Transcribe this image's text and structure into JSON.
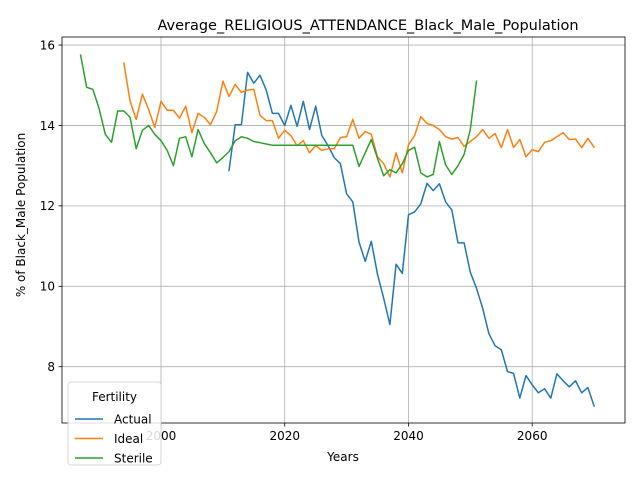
{
  "chart_data": {
    "type": "line",
    "title": "Average_RELIGIOUS_ATTENDANCE_Black_Male_Population",
    "xlabel": "Years",
    "ylabel": "% of Black_Male Population",
    "xlim": [
      1984,
      2075
    ],
    "ylim": [
      6.6,
      16.2
    ],
    "xticks": [
      2000,
      2020,
      2040,
      2060
    ],
    "yticks": [
      8,
      10,
      12,
      14,
      16
    ],
    "grid": true,
    "legend": {
      "title": "Fertility",
      "placement": "lower-left"
    },
    "series": [
      {
        "name": "Actual",
        "color": "#1f77b4",
        "points": [
          [
            2011,
            12.88
          ],
          [
            2012,
            14.02
          ],
          [
            2013,
            14.02
          ],
          [
            2014,
            15.32
          ],
          [
            2015,
            15.05
          ],
          [
            2016,
            15.25
          ],
          [
            2017,
            14.88
          ],
          [
            2018,
            14.3
          ],
          [
            2019,
            14.3
          ],
          [
            2020,
            14.0
          ],
          [
            2021,
            14.5
          ],
          [
            2022,
            13.98
          ],
          [
            2023,
            14.6
          ],
          [
            2024,
            13.9
          ],
          [
            2025,
            14.48
          ],
          [
            2026,
            13.75
          ],
          [
            2027,
            13.5
          ],
          [
            2028,
            13.2
          ],
          [
            2029,
            13.05
          ],
          [
            2030,
            12.3
          ],
          [
            2031,
            12.1
          ],
          [
            2032,
            11.1
          ],
          [
            2033,
            10.62
          ],
          [
            2034,
            11.12
          ],
          [
            2035,
            10.3
          ],
          [
            2036,
            9.7
          ],
          [
            2037,
            9.05
          ],
          [
            2038,
            10.55
          ],
          [
            2039,
            10.32
          ],
          [
            2040,
            11.78
          ],
          [
            2041,
            11.85
          ],
          [
            2042,
            12.05
          ],
          [
            2043,
            12.56
          ],
          [
            2044,
            12.38
          ],
          [
            2045,
            12.55
          ],
          [
            2046,
            12.1
          ],
          [
            2047,
            11.9
          ],
          [
            2048,
            11.08
          ],
          [
            2049,
            11.08
          ],
          [
            2050,
            10.35
          ],
          [
            2051,
            9.95
          ],
          [
            2052,
            9.45
          ],
          [
            2053,
            8.82
          ],
          [
            2054,
            8.52
          ],
          [
            2055,
            8.42
          ],
          [
            2056,
            7.88
          ],
          [
            2057,
            7.83
          ],
          [
            2058,
            7.22
          ],
          [
            2059,
            7.78
          ],
          [
            2060,
            7.55
          ],
          [
            2061,
            7.35
          ],
          [
            2062,
            7.45
          ],
          [
            2063,
            7.22
          ],
          [
            2064,
            7.82
          ],
          [
            2065,
            7.65
          ],
          [
            2066,
            7.5
          ],
          [
            2067,
            7.65
          ],
          [
            2068,
            7.35
          ],
          [
            2069,
            7.48
          ],
          [
            2070,
            7.02
          ]
        ]
      },
      {
        "name": "Ideal",
        "color": "#ff7f0e",
        "points": [
          [
            1994,
            15.55
          ],
          [
            1995,
            14.6
          ],
          [
            1996,
            14.15
          ],
          [
            1997,
            14.78
          ],
          [
            1998,
            14.4
          ],
          [
            1999,
            13.95
          ],
          [
            2000,
            14.6
          ],
          [
            2001,
            14.38
          ],
          [
            2002,
            14.38
          ],
          [
            2003,
            14.18
          ],
          [
            2004,
            14.48
          ],
          [
            2005,
            13.82
          ],
          [
            2006,
            14.3
          ],
          [
            2007,
            14.2
          ],
          [
            2008,
            14.02
          ],
          [
            2009,
            14.35
          ],
          [
            2010,
            15.1
          ],
          [
            2011,
            14.72
          ],
          [
            2012,
            15.02
          ],
          [
            2013,
            14.82
          ],
          [
            2014,
            14.88
          ],
          [
            2015,
            14.9
          ],
          [
            2016,
            14.25
          ],
          [
            2017,
            14.12
          ],
          [
            2018,
            14.12
          ],
          [
            2019,
            13.68
          ],
          [
            2020,
            13.88
          ],
          [
            2021,
            13.75
          ],
          [
            2022,
            13.5
          ],
          [
            2023,
            13.62
          ],
          [
            2024,
            13.32
          ],
          [
            2025,
            13.5
          ],
          [
            2026,
            13.38
          ],
          [
            2027,
            13.42
          ],
          [
            2028,
            13.42
          ],
          [
            2029,
            13.7
          ],
          [
            2030,
            13.72
          ],
          [
            2031,
            14.15
          ],
          [
            2032,
            13.68
          ],
          [
            2033,
            13.85
          ],
          [
            2034,
            13.78
          ],
          [
            2035,
            13.22
          ],
          [
            2036,
            13.05
          ],
          [
            2037,
            12.72
          ],
          [
            2038,
            13.32
          ],
          [
            2039,
            12.82
          ],
          [
            2040,
            13.52
          ],
          [
            2041,
            13.75
          ],
          [
            2042,
            14.22
          ],
          [
            2043,
            14.05
          ],
          [
            2044,
            14.0
          ],
          [
            2045,
            13.9
          ],
          [
            2046,
            13.72
          ],
          [
            2047,
            13.66
          ],
          [
            2048,
            13.7
          ],
          [
            2049,
            13.48
          ],
          [
            2050,
            13.6
          ],
          [
            2051,
            13.72
          ],
          [
            2052,
            13.9
          ],
          [
            2053,
            13.68
          ],
          [
            2054,
            13.8
          ],
          [
            2055,
            13.45
          ],
          [
            2056,
            13.9
          ],
          [
            2057,
            13.45
          ],
          [
            2058,
            13.65
          ],
          [
            2059,
            13.22
          ],
          [
            2060,
            13.4
          ],
          [
            2061,
            13.35
          ],
          [
            2062,
            13.58
          ],
          [
            2063,
            13.62
          ],
          [
            2064,
            13.72
          ],
          [
            2065,
            13.82
          ],
          [
            2066,
            13.65
          ],
          [
            2067,
            13.66
          ],
          [
            2068,
            13.45
          ],
          [
            2069,
            13.68
          ],
          [
            2070,
            13.46
          ]
        ]
      },
      {
        "name": "Sterile",
        "color": "#2ca02c",
        "points": [
          [
            1987,
            15.75
          ],
          [
            1988,
            14.95
          ],
          [
            1989,
            14.9
          ],
          [
            1990,
            14.42
          ],
          [
            1991,
            13.78
          ],
          [
            1992,
            13.58
          ],
          [
            1993,
            14.36
          ],
          [
            1994,
            14.36
          ],
          [
            1995,
            14.2
          ],
          [
            1996,
            13.42
          ],
          [
            1997,
            13.88
          ],
          [
            1998,
            14.0
          ],
          [
            1999,
            13.78
          ],
          [
            2000,
            13.62
          ],
          [
            2001,
            13.38
          ],
          [
            2002,
            13.0
          ],
          [
            2003,
            13.68
          ],
          [
            2004,
            13.72
          ],
          [
            2005,
            13.22
          ],
          [
            2006,
            13.9
          ],
          [
            2007,
            13.55
          ],
          [
            2008,
            13.32
          ],
          [
            2009,
            13.07
          ],
          [
            2010,
            13.2
          ],
          [
            2011,
            13.35
          ],
          [
            2012,
            13.62
          ],
          [
            2013,
            13.72
          ],
          [
            2014,
            13.68
          ],
          [
            2015,
            13.6
          ],
          [
            2016,
            13.57
          ],
          [
            2017,
            13.54
          ],
          [
            2018,
            13.51
          ],
          [
            2019,
            13.51
          ],
          [
            2020,
            13.51
          ],
          [
            2021,
            13.51
          ],
          [
            2022,
            13.51
          ],
          [
            2023,
            13.51
          ],
          [
            2024,
            13.51
          ],
          [
            2025,
            13.51
          ],
          [
            2026,
            13.51
          ],
          [
            2027,
            13.51
          ],
          [
            2028,
            13.51
          ],
          [
            2029,
            13.51
          ],
          [
            2030,
            13.51
          ],
          [
            2031,
            13.51
          ],
          [
            2032,
            12.98
          ],
          [
            2033,
            13.32
          ],
          [
            2034,
            13.65
          ],
          [
            2035,
            13.18
          ],
          [
            2036,
            12.75
          ],
          [
            2037,
            12.9
          ],
          [
            2038,
            12.82
          ],
          [
            2039,
            13.05
          ],
          [
            2040,
            13.38
          ],
          [
            2041,
            13.46
          ],
          [
            2042,
            12.82
          ],
          [
            2043,
            12.72
          ],
          [
            2044,
            12.78
          ],
          [
            2045,
            13.6
          ],
          [
            2046,
            13.02
          ],
          [
            2047,
            12.78
          ],
          [
            2048,
            13.0
          ],
          [
            2049,
            13.28
          ],
          [
            2050,
            13.9
          ],
          [
            2051,
            15.1
          ]
        ]
      }
    ]
  }
}
